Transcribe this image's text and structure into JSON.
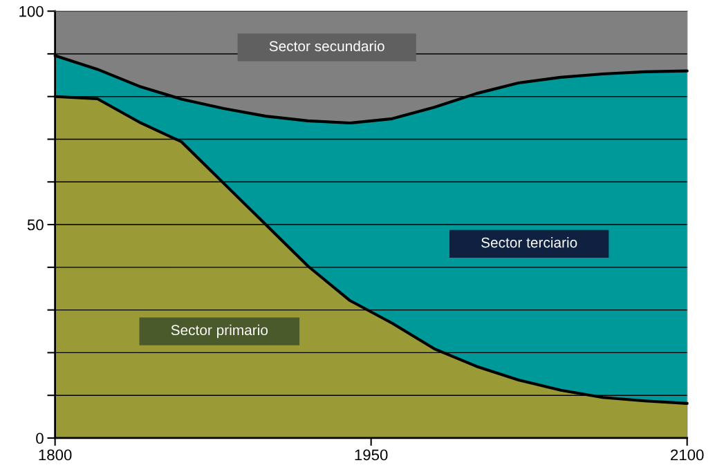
{
  "chart_data": {
    "type": "area",
    "stacked": true,
    "x": [
      1800,
      1820,
      1840,
      1860,
      1880,
      1900,
      1920,
      1940,
      1960,
      1980,
      2000,
      2020,
      2040,
      2060,
      2080,
      2100
    ],
    "series": [
      {
        "name": "Sector primario",
        "color": "#9a9a36",
        "values": [
          80,
          79.5,
          74,
          69.4,
          59.7,
          50,
          40.3,
          32.2,
          26.9,
          20.9,
          16.8,
          13.6,
          11.2,
          9.5,
          8.7,
          8.1
        ]
      },
      {
        "name": "Sector terciario",
        "color": "#00999a",
        "values": [
          9.6,
          6.9,
          8.4,
          10,
          17.5,
          25.4,
          34,
          41.6,
          47.9,
          56.6,
          63.9,
          69.6,
          73.3,
          75.8,
          77.1,
          77.9
        ]
      },
      {
        "name": "Sector secundario",
        "color": "#808080",
        "values": [
          10.4,
          13.6,
          17.6,
          20.6,
          22.8,
          24.6,
          25.7,
          26.2,
          25.2,
          22.5,
          19.3,
          16.8,
          15.5,
          14.7,
          14.2,
          14
        ]
      }
    ],
    "xlim": [
      1800,
      2100
    ],
    "xticks": [
      1800,
      1950,
      2100
    ],
    "ylim": [
      0,
      100
    ],
    "yticks": [
      0,
      {
        "value": 10,
        "label": null
      },
      {
        "value": 20,
        "label": null
      },
      {
        "value": 30,
        "label": null
      },
      {
        "value": 40,
        "label": null
      },
      50,
      {
        "value": 60,
        "label": null
      },
      {
        "value": 70,
        "label": null
      },
      {
        "value": 80,
        "label": null
      },
      {
        "value": 90,
        "label": null
      },
      100
    ],
    "grid": "y",
    "legend": false
  }
}
